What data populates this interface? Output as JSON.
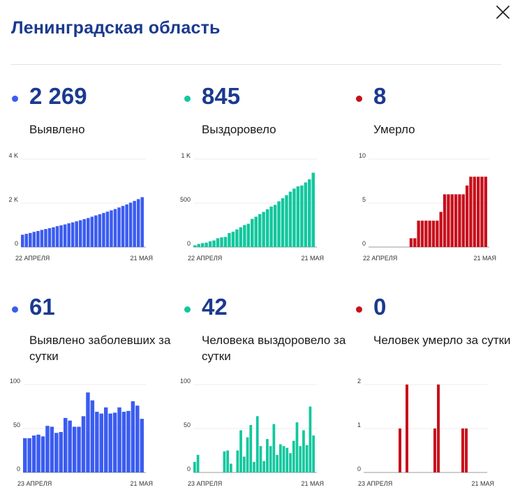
{
  "header": {
    "title": "Ленинградская область"
  },
  "panels": [
    {
      "value": "2 269",
      "label": "Выявлено",
      "color": "#3b5cf0"
    },
    {
      "value": "845",
      "label": "Выздоровело",
      "color": "#12c79e"
    },
    {
      "value": "8",
      "label": "Умерло",
      "color": "#c7101c"
    },
    {
      "value": "61",
      "label": "Выявлено заболевших за сутки",
      "color": "#3b5cf0"
    },
    {
      "value": "42",
      "label": "Человека выздоровело за сутки",
      "color": "#12c79e"
    },
    {
      "value": "0",
      "label": "Человек умерло за сутки",
      "color": "#c7101c"
    }
  ],
  "chart_data": [
    {
      "type": "bar",
      "x_start_label": "22 АПРЕЛЯ",
      "x_end_label": "21 МАЯ",
      "ylim": [
        0,
        4000
      ],
      "yticks": [
        0,
        2000,
        4000
      ],
      "ytick_labels": [
        "0",
        "2 K",
        "4 K"
      ],
      "values": [
        560,
        600,
        640,
        690,
        730,
        780,
        820,
        860,
        900,
        950,
        990,
        1030,
        1080,
        1120,
        1170,
        1220,
        1270,
        1320,
        1380,
        1440,
        1490,
        1550,
        1610,
        1670,
        1730,
        1800,
        1870,
        1940,
        2020,
        2100,
        2180,
        2269
      ],
      "color": "#3b5cf0"
    },
    {
      "type": "bar",
      "x_start_label": "22 АПРЕЛЯ",
      "x_end_label": "21 МАЯ",
      "ylim": [
        0,
        1000
      ],
      "yticks": [
        0,
        500,
        1000
      ],
      "ytick_labels": [
        "0",
        "500",
        "1 K"
      ],
      "values": [
        20,
        35,
        45,
        50,
        65,
        75,
        100,
        110,
        115,
        160,
        175,
        200,
        225,
        250,
        265,
        320,
        345,
        375,
        400,
        430,
        460,
        480,
        520,
        555,
        590,
        630,
        665,
        690,
        700,
        735,
        770,
        845
      ],
      "color": "#12c79e"
    },
    {
      "type": "bar",
      "x_start_label": "22 АПРЕЛЯ",
      "x_end_label": "21 МАЯ",
      "ylim": [
        0,
        10
      ],
      "yticks": [
        0,
        5,
        10
      ],
      "ytick_labels": [
        "0",
        "5",
        "10"
      ],
      "values": [
        0,
        0,
        0,
        0,
        0,
        0,
        0,
        0,
        0,
        0,
        0,
        1,
        1,
        3,
        3,
        3,
        3,
        3,
        3,
        4,
        6,
        6,
        6,
        6,
        6,
        6,
        7,
        8,
        8,
        8,
        8,
        8
      ],
      "color": "#c7101c"
    },
    {
      "type": "bar",
      "x_start_label": "23 АПРЕЛЯ",
      "x_end_label": "21 МАЯ",
      "ylim": [
        0,
        100
      ],
      "yticks": [
        0,
        50,
        100
      ],
      "ytick_labels": [
        "0",
        "50",
        "100"
      ],
      "values": [
        39,
        39,
        42,
        43,
        41,
        53,
        52,
        45,
        46,
        62,
        59,
        52,
        52,
        64,
        91,
        82,
        69,
        67,
        74,
        67,
        68,
        74,
        69,
        70,
        81,
        76,
        61
      ],
      "color": "#3b5cf0"
    },
    {
      "type": "bar",
      "x_start_label": "23 АПРЕЛЯ",
      "x_end_label": "21 МАЯ",
      "ylim": [
        0,
        100
      ],
      "yticks": [
        0,
        50,
        100
      ],
      "ytick_labels": [
        "0",
        "50",
        "100"
      ],
      "values": [
        12,
        20,
        0,
        0,
        0,
        0,
        0,
        0,
        0,
        24,
        25,
        10,
        0,
        25,
        48,
        18,
        40,
        54,
        12,
        64,
        30,
        13,
        38,
        30,
        55,
        20,
        32,
        30,
        28,
        22,
        36,
        57,
        30,
        48,
        31,
        75,
        42
      ],
      "color": "#12c79e"
    },
    {
      "type": "bar",
      "x_start_label": "23 АПРЕЛЯ",
      "x_end_label": "21 МАЯ",
      "ylim": [
        0,
        2
      ],
      "yticks": [
        0,
        1,
        2
      ],
      "ytick_labels": [
        "0",
        "1",
        "2"
      ],
      "values": [
        0,
        0,
        0,
        0,
        0,
        0,
        0,
        0,
        0,
        0,
        1,
        0,
        2,
        0,
        0,
        0,
        0,
        0,
        0,
        0,
        1,
        2,
        0,
        0,
        0,
        0,
        0,
        0,
        1,
        1,
        0,
        0,
        0,
        0,
        0
      ],
      "color": "#c7101c"
    }
  ]
}
